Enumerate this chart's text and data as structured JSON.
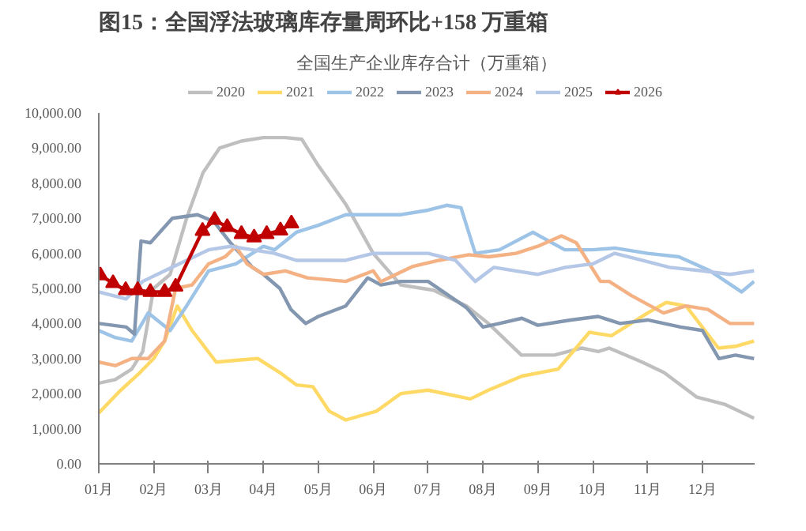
{
  "chart_data": {
    "type": "line",
    "title": "图15：全国浮法玻璃库存量周环比+158 万重箱",
    "subtitle": "全国生产企业库存合计（万重箱）",
    "xlim": [
      1,
      12.95
    ],
    "xticks": [
      {
        "value": 1,
        "label": "01月"
      },
      {
        "value": 2,
        "label": "02月"
      },
      {
        "value": 3,
        "label": "03月"
      },
      {
        "value": 4,
        "label": "04月"
      },
      {
        "value": 5,
        "label": "05月"
      },
      {
        "value": 6,
        "label": "06月"
      },
      {
        "value": 7,
        "label": "07月"
      },
      {
        "value": 8,
        "label": "08月"
      },
      {
        "value": 9,
        "label": "09月"
      },
      {
        "value": 10,
        "label": "10月"
      },
      {
        "value": 11,
        "label": "11月"
      },
      {
        "value": 12,
        "label": "12月"
      }
    ],
    "ylim": [
      0,
      10000
    ],
    "yticks": [
      {
        "value": 0,
        "label": "0.00"
      },
      {
        "value": 1000,
        "label": "1,000.00"
      },
      {
        "value": 2000,
        "label": "2,000.00"
      },
      {
        "value": 3000,
        "label": "3,000.00"
      },
      {
        "value": 4000,
        "label": "4,000.00"
      },
      {
        "value": 5000,
        "label": "5,000.00"
      },
      {
        "value": 6000,
        "label": "6,000.00"
      },
      {
        "value": 7000,
        "label": "7,000.00"
      },
      {
        "value": 8000,
        "label": "8,000.00"
      },
      {
        "value": 9000,
        "label": "9,000.00"
      },
      {
        "value": 10000,
        "label": "10,000.00"
      }
    ],
    "grid": false,
    "legend": "top",
    "line_style": "solid",
    "series": [
      {
        "name": "2020",
        "color": "#bfbfbf",
        "x": [
          1,
          1.3,
          1.6,
          1.8,
          2.0,
          2.3,
          2.6,
          2.9,
          3.2,
          3.6,
          4.0,
          4.4,
          4.7,
          5.0,
          5.5,
          6.0,
          6.5,
          7.1,
          7.7,
          8.1,
          8.7,
          9.3,
          9.8,
          10.1,
          10.3,
          10.9,
          11.3,
          11.9,
          12.4,
          12.94
        ],
        "values": [
          2300,
          2400,
          2700,
          3200,
          5000,
          5400,
          7000,
          8300,
          9000,
          9200,
          9300,
          9300,
          9250,
          8500,
          7400,
          6000,
          5100,
          4950,
          4500,
          4000,
          3100,
          3100,
          3300,
          3200,
          3300,
          2900,
          2600,
          1900,
          1700,
          1300
        ]
      },
      {
        "name": "2021",
        "color": "#ffd966",
        "x": [
          1,
          1.4,
          1.75,
          2.0,
          2.2,
          2.43,
          2.7,
          3.14,
          3.5,
          3.9,
          4.3,
          4.6,
          4.9,
          5.2,
          5.5,
          6.06,
          6.5,
          7.0,
          7.77,
          8.1,
          8.71,
          9.37,
          9.94,
          10.34,
          11.0,
          11.34,
          11.7,
          12.29,
          12.6,
          12.94
        ],
        "values": [
          1450,
          2100,
          2600,
          3000,
          3500,
          4500,
          3800,
          2900,
          2950,
          3000,
          2600,
          2250,
          2200,
          1500,
          1250,
          1500,
          2000,
          2100,
          1850,
          2100,
          2500,
          2700,
          3750,
          3650,
          4300,
          4600,
          4500,
          3300,
          3350,
          3500
        ]
      },
      {
        "name": "2022",
        "color": "#9dc3e6",
        "x": [
          1,
          1.3,
          1.6,
          1.9,
          2.3,
          2.6,
          3.0,
          3.5,
          4.0,
          4.2,
          4.6,
          5.0,
          5.5,
          6.0,
          6.5,
          7.0,
          7.34,
          7.6,
          7.86,
          8.3,
          8.91,
          9.49,
          10.0,
          10.4,
          11.0,
          11.57,
          12.14,
          12.71,
          12.94
        ],
        "values": [
          3800,
          3600,
          3500,
          4300,
          3800,
          4500,
          5500,
          5700,
          6200,
          6100,
          6600,
          6800,
          7100,
          7100,
          7100,
          7230,
          7370,
          7300,
          6000,
          6100,
          6600,
          6100,
          6100,
          6150,
          6000,
          5900,
          5500,
          4900,
          5200
        ]
      },
      {
        "name": "2023",
        "color": "#8497b0",
        "x": [
          1,
          1.5,
          1.65,
          1.77,
          1.94,
          2.34,
          2.8,
          3.1,
          3.4,
          3.8,
          4.0,
          4.3,
          4.5,
          4.77,
          5.0,
          5.5,
          5.9,
          6.14,
          6.5,
          7.0,
          7.7,
          8.0,
          8.3,
          8.71,
          9.0,
          9.6,
          10.1,
          10.5,
          11.0,
          11.6,
          12.0,
          12.3,
          12.6,
          12.94
        ],
        "values": [
          4000,
          3900,
          3700,
          6350,
          6300,
          7000,
          7100,
          6900,
          6300,
          5600,
          5400,
          5000,
          4400,
          4000,
          4200,
          4500,
          5300,
          5100,
          5200,
          5200,
          4450,
          3900,
          4000,
          4150,
          3950,
          4100,
          4200,
          4000,
          4100,
          3900,
          3800,
          3000,
          3100,
          3000
        ]
      },
      {
        "name": "2024",
        "color": "#f4b183",
        "x": [
          1,
          1.3,
          1.6,
          1.9,
          2.2,
          2.4,
          2.7,
          3.0,
          3.3,
          3.5,
          3.7,
          4.0,
          4.4,
          4.8,
          5.5,
          6.0,
          6.14,
          6.71,
          7.2,
          7.74,
          8.1,
          8.6,
          9.0,
          9.43,
          9.7,
          10.14,
          10.3,
          10.7,
          11.29,
          11.7,
          12.1,
          12.5,
          12.94
        ],
        "values": [
          2900,
          2800,
          3000,
          3000,
          3500,
          5000,
          5100,
          5700,
          5900,
          6200,
          5700,
          5400,
          5500,
          5300,
          5200,
          5500,
          5190,
          5620,
          5800,
          5960,
          5900,
          6000,
          6200,
          6500,
          6300,
          5200,
          5200,
          4800,
          4300,
          4500,
          4400,
          4000,
          4000
        ]
      },
      {
        "name": "2025",
        "color": "#b4c7e7",
        "x": [
          1,
          1.5,
          1.8,
          2.2,
          2.6,
          3.0,
          3.4,
          3.8,
          4.2,
          4.6,
          5.0,
          5.5,
          6.0,
          6.5,
          7.0,
          7.5,
          7.86,
          8.2,
          8.6,
          9.0,
          9.5,
          10.0,
          10.4,
          10.9,
          11.4,
          12.0,
          12.5,
          12.94
        ],
        "values": [
          4900,
          4700,
          5200,
          5500,
          5800,
          6100,
          6200,
          6100,
          6000,
          5800,
          5800,
          5800,
          6000,
          6000,
          6000,
          5800,
          5200,
          5600,
          5500,
          5400,
          5600,
          5700,
          6000,
          5800,
          5600,
          5500,
          5400,
          5500
        ]
      },
      {
        "name": "2026",
        "color": "#c00000",
        "marker": "triangle",
        "x": [
          1.03,
          1.26,
          1.49,
          1.71,
          1.94,
          2.2,
          2.4,
          2.89,
          3.11,
          3.34,
          3.6,
          3.83,
          4.06,
          4.31,
          4.51
        ],
        "values": [
          5370,
          5150,
          4950,
          4950,
          4900,
          4900,
          5050,
          6640,
          6950,
          6750,
          6550,
          6450,
          6550,
          6650,
          6850
        ]
      }
    ]
  }
}
